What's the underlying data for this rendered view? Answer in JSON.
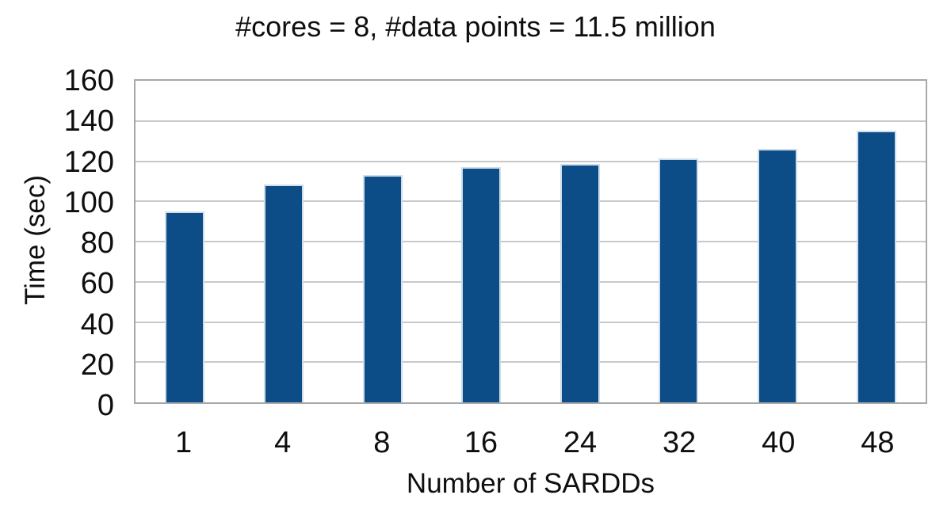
{
  "chart_data": {
    "type": "bar",
    "title": "#cores = 8, #data points = 11.5 million",
    "xlabel": "Number of SARDDs",
    "ylabel": "Time (sec)",
    "categories": [
      "1",
      "4",
      "8",
      "16",
      "24",
      "32",
      "40",
      "48"
    ],
    "values": [
      95,
      108.5,
      113,
      117,
      118.5,
      121.5,
      126,
      135
    ],
    "ylim": [
      0,
      160
    ],
    "yticks": [
      0,
      20,
      40,
      60,
      80,
      100,
      120,
      140,
      160
    ],
    "grid": "horizontal-only",
    "legend": "none",
    "colors": {
      "bar_fill": "#0c4c87",
      "bar_edge": "#cdddeb",
      "gridline": "#c8c8c8",
      "plot_border": "#a8a8a8",
      "text": "#0f0f0f",
      "background": "#ffffff"
    }
  }
}
